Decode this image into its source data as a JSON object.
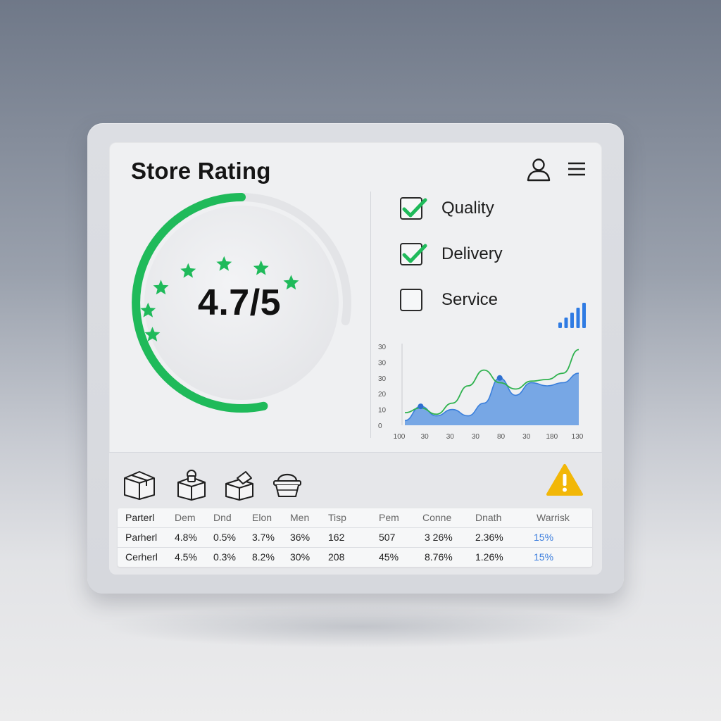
{
  "header": {
    "title": "Store Rating",
    "icons": [
      "user-icon",
      "menu-icon"
    ]
  },
  "rating": {
    "score_text": "4.7/5",
    "value": 4.7,
    "max": 5,
    "accent_color": "#1fba5a",
    "track_color": "#e3e4e7",
    "stars_count": 7
  },
  "criteria": [
    {
      "label": "Quality",
      "checked": true
    },
    {
      "label": "Delivery",
      "checked": true
    },
    {
      "label": "Service",
      "checked": false
    }
  ],
  "chart_data": {
    "type": "area",
    "y_ticks": [
      "0",
      "10",
      "20",
      "30",
      "30",
      "30"
    ],
    "x_ticks": [
      "100",
      "30",
      "30",
      "30",
      "80",
      "30",
      "180",
      "130"
    ],
    "ylim": [
      0,
      50
    ],
    "series": [
      {
        "color": "#2fb24f",
        "values": [
          8,
          11,
          7,
          14,
          25,
          35,
          27,
          23,
          28,
          29,
          33,
          48
        ]
      },
      {
        "color": "#4f8fe0",
        "values": [
          3,
          12,
          6,
          10,
          6,
          14,
          30,
          19,
          27,
          25,
          27,
          33
        ]
      }
    ],
    "markers": [
      {
        "series": 1,
        "index": 1
      },
      {
        "series": 1,
        "index": 6
      }
    ],
    "grid": false,
    "legend": "none"
  },
  "signal_icon": {
    "name": "signal-bars-icon",
    "color": "#2f7be3",
    "bars": 5
  },
  "categories": [
    "package-icon",
    "box-lock-icon",
    "open-box-icon",
    "basket-icon"
  ],
  "warning": {
    "name": "warning-icon",
    "color": "#f2b707"
  },
  "table": {
    "columns": [
      "Parterl",
      "Dem",
      "Dnd",
      "Elon",
      "Men",
      "Tisp",
      "Pem",
      "Conne",
      "Dnath",
      "Warrisk"
    ],
    "rows": [
      [
        "Parherl",
        "4.8%",
        "0.5%",
        "3.7%",
        "36%",
        "162",
        "507",
        "3 26%",
        "2.36%",
        "15%"
      ],
      [
        "Cerherl",
        "4.5%",
        "0.3%",
        "8.2%",
        "30%",
        "208",
        "45%",
        "8.76%",
        "1.26%",
        "15%"
      ]
    ]
  }
}
